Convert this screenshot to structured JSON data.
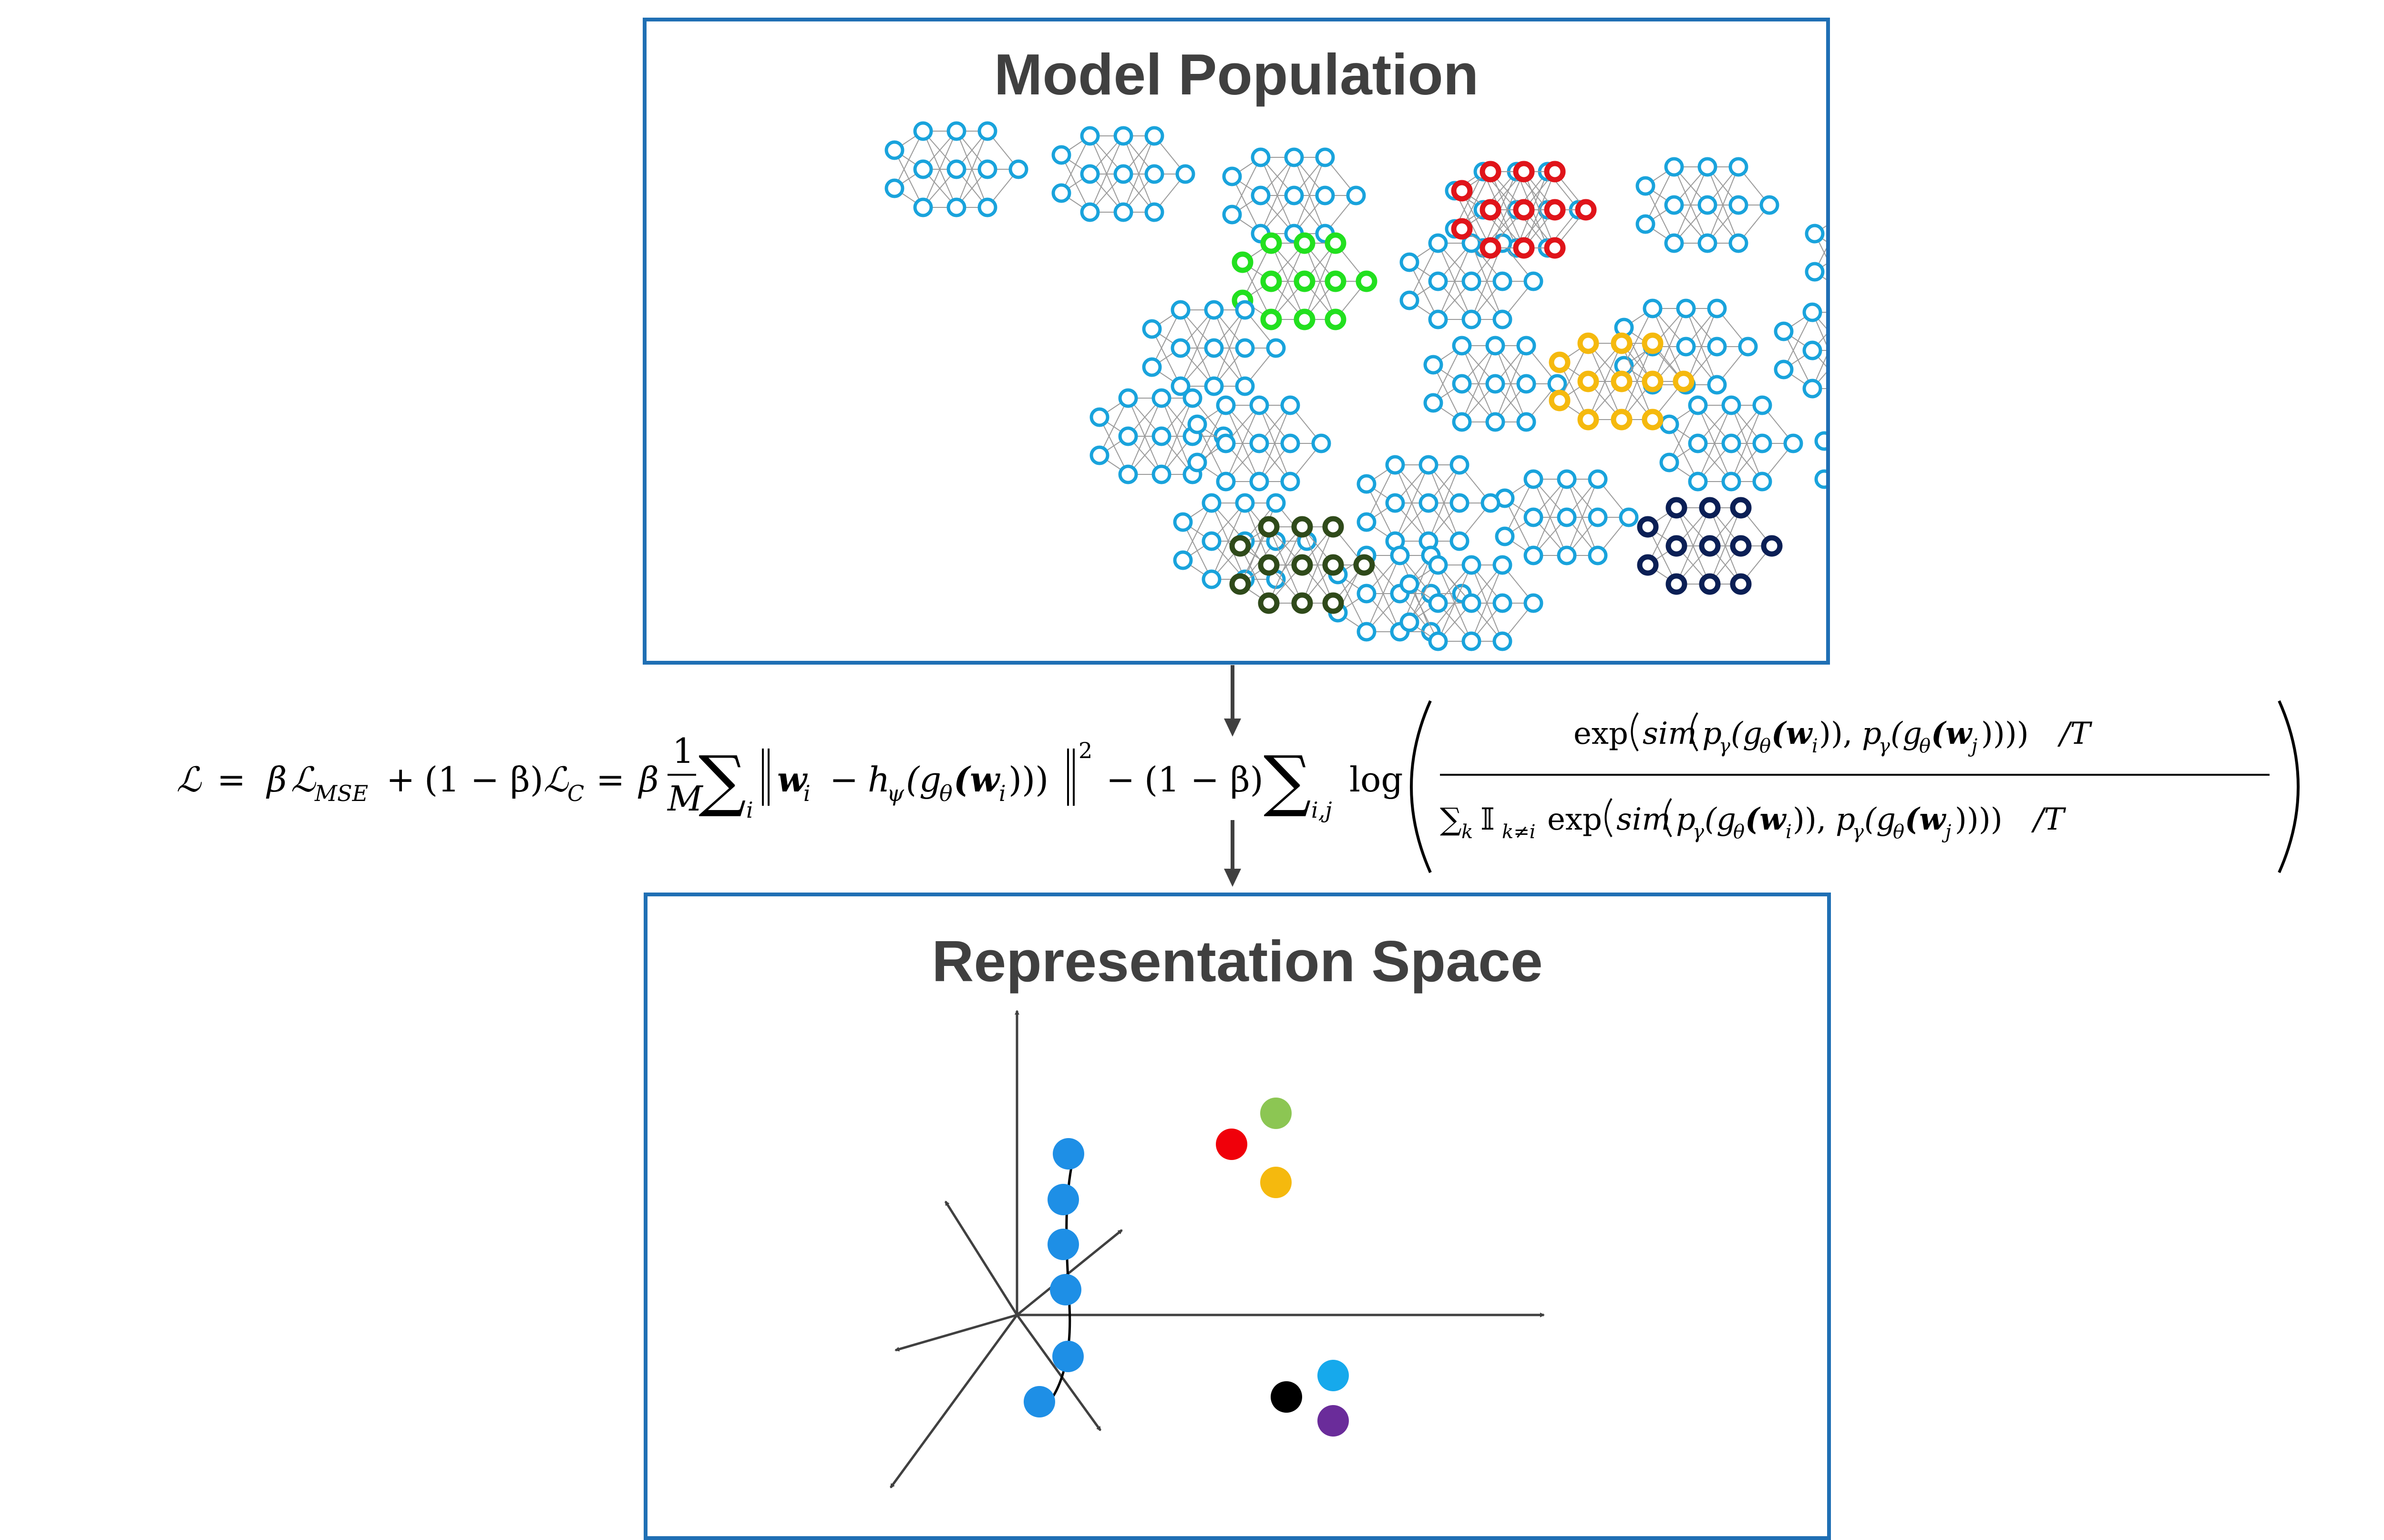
{
  "top_panel": {
    "title": "Model Population"
  },
  "bottom_panel": {
    "title": "Representation Space"
  },
  "colors": {
    "frame": "#1f6fb4",
    "network_default": "#19a3dc",
    "network_highlights": [
      "#22e01f",
      "#e0141a",
      "#f5b90e",
      "#2f4a1a",
      "#0b1f55"
    ],
    "edge": "#9a9a9a",
    "arrow": "#404040",
    "points_blue": "#1e8fe6",
    "point_red": "#f0000a",
    "point_green": "#8cc653",
    "point_yellow": "#f5b90e",
    "point_black": "#000000",
    "point_cyan": "#16a9ec",
    "point_purple": "#6a2c9a"
  },
  "formula": {
    "loss": "ℒ",
    "eq1": "=",
    "beta": "β",
    "L_mse": "ℒ",
    "sub_mse": "MSE",
    "plus": "+",
    "one_minus_beta": "(1 − β)",
    "L_c": "ℒ",
    "sub_c": "C",
    "eq2": "=",
    "frac_num": "1",
    "frac_den": "M",
    "sum": "∑",
    "sum_sub_i": "i",
    "norm_term_w": "w",
    "norm_term_i": "i",
    "minus": "−",
    "h": "h",
    "h_sub": "ψ",
    "g_paren": "(g",
    "g_sub": "θ",
    "w_inner": "(w",
    "w_inner_sub": "i",
    "close_paren": ")))",
    "sq": "2",
    "minus2": "−",
    "one_minus_beta2": "(1 − β)",
    "sum2": "∑",
    "sum2_sub": "i,j",
    "log": "log",
    "num_exp": "exp",
    "num_sim": "sim",
    "num_p1": "p",
    "num_gamma1": "γ",
    "num_g1": "(g",
    "num_theta1": "θ",
    "num_w1": "(w",
    "num_i1": "i",
    "num_close1": ")),",
    "num_p2": "p",
    "num_gamma2": "γ",
    "num_g2": "(g",
    "num_theta2": "θ",
    "num_w2": "(w",
    "num_j2": "j",
    "num_close2": "))))",
    "num_over_t": "/T",
    "den_sum": "∑",
    "den_k": "k",
    "den_indicator": "𝕀",
    "den_cond": "k≠i",
    "den_exp": "exp",
    "den_sim": "sim",
    "den_p1": "p",
    "den_gamma1": "γ",
    "den_g1": "(g",
    "den_theta1": "θ",
    "den_w1": "(w",
    "den_i1": "i",
    "den_close1": ")),",
    "den_p2": "p",
    "den_gamma2": "γ",
    "den_g2": "(g",
    "den_theta2": "θ",
    "den_w2": "(w",
    "den_j2": "j",
    "den_close2": "))))",
    "den_over_t": "/T"
  }
}
